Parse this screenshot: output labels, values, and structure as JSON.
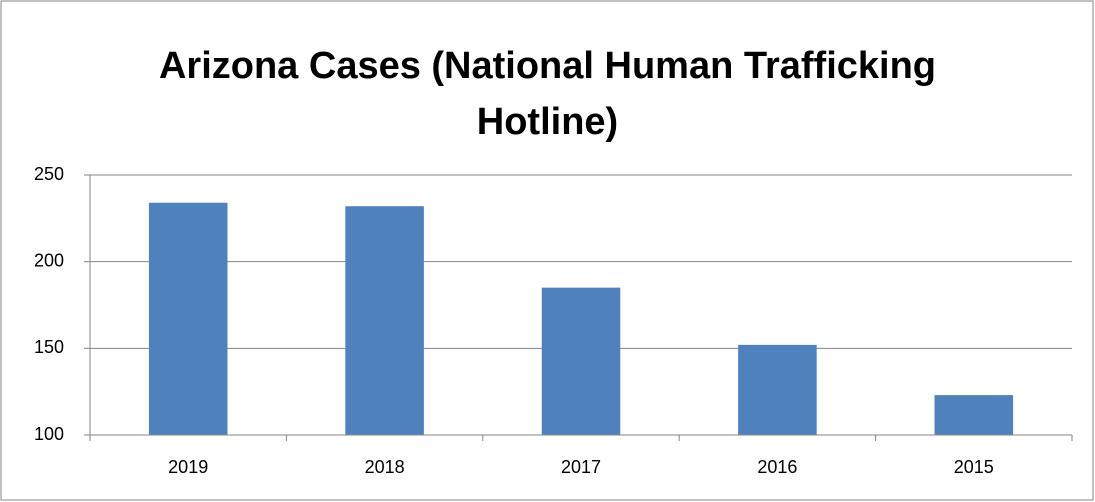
{
  "chart_data": {
    "type": "bar",
    "title": "Arizona Cases (National Human Trafficking Hotline)",
    "categories": [
      "2019",
      "2018",
      "2017",
      "2016",
      "2015"
    ],
    "values": [
      234,
      232,
      185,
      152,
      123
    ],
    "color": "#4f81bd",
    "ylim": [
      100,
      250
    ],
    "yticks": [
      100,
      150,
      200,
      250
    ],
    "grid": true
  }
}
